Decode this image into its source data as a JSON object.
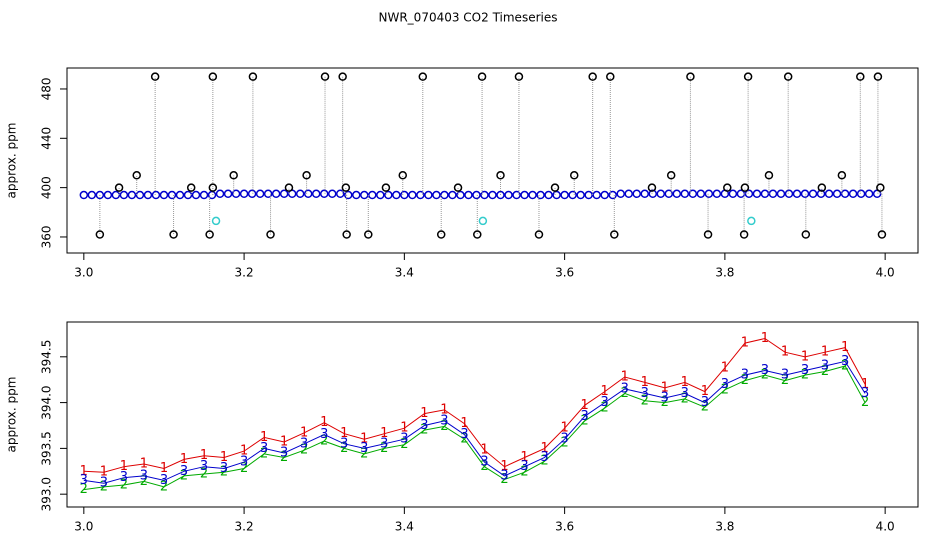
{
  "chart_data": [
    {
      "type": "scatter",
      "title": "NWR_070403  CO2 Timeseries",
      "y_label": "approx. ppm",
      "xlim": [
        2.979,
        4.041
      ],
      "ylim": [
        347,
        497
      ],
      "xticks": [
        {
          "value": 3,
          "label": "3.0"
        },
        3.2,
        3.4,
        3.6,
        3.8,
        {
          "value": 4,
          "label": "4.0"
        }
      ],
      "yticks": [
        360,
        400,
        440,
        480
      ],
      "series": [
        {
          "color": "#0000cc",
          "marker": "circle",
          "x": [
            3.0,
            3.01,
            3.02,
            3.03,
            3.04,
            3.05,
            3.06,
            3.07,
            3.08,
            3.09,
            3.1,
            3.11,
            3.12,
            3.13,
            3.14,
            3.15,
            3.16,
            3.17,
            3.18,
            3.19,
            3.2,
            3.21,
            3.22,
            3.23,
            3.24,
            3.25,
            3.26,
            3.27,
            3.28,
            3.29,
            3.3,
            3.31,
            3.32,
            3.33,
            3.34,
            3.35,
            3.36,
            3.37,
            3.38,
            3.39,
            3.4,
            3.41,
            3.42,
            3.43,
            3.44,
            3.45,
            3.46,
            3.47,
            3.48,
            3.49,
            3.5,
            3.51,
            3.52,
            3.53,
            3.54,
            3.55,
            3.56,
            3.57,
            3.58,
            3.59,
            3.6,
            3.61,
            3.62,
            3.63,
            3.64,
            3.65,
            3.66,
            3.67,
            3.68,
            3.69,
            3.7,
            3.71,
            3.72,
            3.73,
            3.74,
            3.75,
            3.76,
            3.77,
            3.78,
            3.79,
            3.8,
            3.81,
            3.82,
            3.83,
            3.84,
            3.85,
            3.86,
            3.87,
            3.88,
            3.89,
            3.9,
            3.91,
            3.92,
            3.93,
            3.94,
            3.95,
            3.96,
            3.97,
            3.98,
            3.99
          ],
          "values": [
            394,
            394,
            394,
            394,
            394,
            394,
            394,
            394,
            394,
            394,
            394,
            394,
            394,
            394,
            394,
            394,
            394,
            395,
            395,
            395,
            395,
            395,
            395,
            395,
            395,
            395,
            395,
            395,
            395,
            395,
            395,
            395,
            395,
            394,
            394,
            394,
            394,
            394,
            394,
            394,
            394,
            394,
            394,
            394,
            394,
            394,
            394,
            394,
            394,
            394,
            394,
            394,
            394,
            394,
            394,
            394,
            394,
            394,
            394,
            394,
            394,
            394,
            394,
            394,
            394,
            394,
            394,
            395,
            395,
            395,
            395,
            395,
            395,
            395,
            395,
            395,
            395,
            395,
            395,
            395,
            395,
            395,
            395,
            395,
            395,
            395,
            395,
            395,
            395,
            395,
            395,
            395,
            395,
            395,
            395,
            395,
            395,
            395,
            395,
            395
          ]
        },
        {
          "color": "#000000",
          "marker": "circle",
          "drop": true,
          "x": [
            3.089,
            3.161,
            3.211,
            3.301,
            3.323,
            3.423,
            3.497,
            3.543,
            3.635,
            3.657,
            3.757,
            3.829,
            3.879,
            3.969,
            3.991,
            3.066,
            3.187,
            3.278,
            3.398,
            3.52,
            3.612,
            3.733,
            3.855,
            3.946,
            3.044,
            3.134,
            3.161,
            3.256,
            3.327,
            3.377,
            3.467,
            3.588,
            3.709,
            3.803,
            3.825,
            3.921,
            3.994,
            3.02,
            3.112,
            3.157,
            3.233,
            3.328,
            3.355,
            3.446,
            3.491,
            3.568,
            3.662,
            3.779,
            3.824,
            3.901,
            3.996
          ],
          "values": [
            490,
            490,
            490,
            490,
            490,
            490,
            490,
            490,
            490,
            490,
            490,
            490,
            490,
            490,
            490,
            410,
            410,
            410,
            410,
            410,
            410,
            410,
            410,
            410,
            400,
            400,
            400,
            400,
            400,
            400,
            400,
            400,
            400,
            400,
            400,
            400,
            400,
            362,
            362,
            362,
            362,
            362,
            362,
            362,
            362,
            362,
            362,
            362,
            362,
            362,
            362
          ]
        },
        {
          "color": "#33cccc",
          "marker": "circle",
          "x": [
            3.165,
            3.498,
            3.833
          ],
          "values": [
            373,
            373,
            373
          ]
        }
      ]
    },
    {
      "type": "scatter",
      "y_label": "approx. ppm",
      "xlim": [
        2.979,
        4.041
      ],
      "ylim": [
        392.86,
        394.88
      ],
      "xticks": [
        {
          "value": 3,
          "label": "3.0"
        },
        3.2,
        3.4,
        3.6,
        3.8,
        {
          "value": 4,
          "label": "4.0"
        }
      ],
      "yticks": [
        {
          "value": 393,
          "label": "393.0"
        },
        393.5,
        {
          "value": 394,
          "label": "394.0"
        },
        394.5
      ],
      "x": [
        3.0,
        3.025,
        3.05,
        3.075,
        3.1,
        3.125,
        3.15,
        3.175,
        3.2,
        3.225,
        3.25,
        3.275,
        3.3,
        3.325,
        3.35,
        3.375,
        3.4,
        3.425,
        3.45,
        3.475,
        3.5,
        3.525,
        3.55,
        3.575,
        3.6,
        3.625,
        3.65,
        3.675,
        3.7,
        3.725,
        3.75,
        3.775,
        3.8,
        3.825,
        3.85,
        3.875,
        3.9,
        3.925,
        3.95,
        3.975
      ],
      "series": [
        {
          "color": "#dd0000",
          "marker": "1",
          "values": [
            393.25,
            393.24,
            393.3,
            393.33,
            393.28,
            393.38,
            393.42,
            393.4,
            393.47,
            393.62,
            393.57,
            393.67,
            393.78,
            393.66,
            393.6,
            393.66,
            393.72,
            393.88,
            393.92,
            393.77,
            393.48,
            393.3,
            393.4,
            393.5,
            393.72,
            393.97,
            394.12,
            394.28,
            394.22,
            394.16,
            394.22,
            394.12,
            394.38,
            394.65,
            394.7,
            394.55,
            394.5,
            394.55,
            394.6,
            394.2
          ]
        },
        {
          "color": "#00aa00",
          "marker": "2",
          "values": [
            393.05,
            393.08,
            393.1,
            393.14,
            393.08,
            393.2,
            393.22,
            393.24,
            393.28,
            393.44,
            393.4,
            393.48,
            393.58,
            393.5,
            393.44,
            393.5,
            393.54,
            393.7,
            393.74,
            393.6,
            393.3,
            393.16,
            393.24,
            393.36,
            393.56,
            393.8,
            393.94,
            394.1,
            394.02,
            394.0,
            394.04,
            393.95,
            394.14,
            394.24,
            394.3,
            394.24,
            394.3,
            394.34,
            394.4,
            394.0
          ]
        },
        {
          "color": "#0000cc",
          "marker": "3",
          "values": [
            393.15,
            393.12,
            393.18,
            393.2,
            393.15,
            393.25,
            393.3,
            393.28,
            393.35,
            393.5,
            393.45,
            393.55,
            393.65,
            393.55,
            393.5,
            393.55,
            393.6,
            393.75,
            393.8,
            393.65,
            393.35,
            393.2,
            393.3,
            393.4,
            393.6,
            393.85,
            394.0,
            394.15,
            394.1,
            394.05,
            394.1,
            394.0,
            394.2,
            394.3,
            394.35,
            394.3,
            394.35,
            394.4,
            394.45,
            394.1
          ]
        }
      ]
    }
  ]
}
